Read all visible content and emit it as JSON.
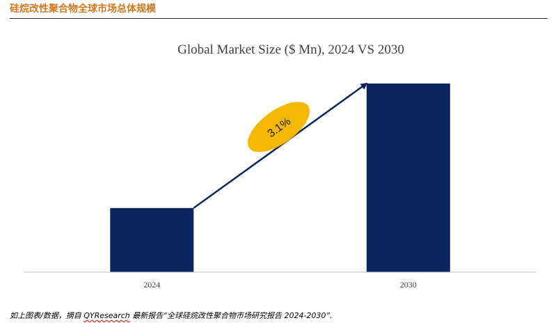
{
  "header": {
    "title": "硅烷改性聚合物全球市场总体规模"
  },
  "colors": {
    "title_accent": "#d4781e",
    "bar": "#0c2560",
    "arrow": "#0c2560",
    "cagr_bubble": "#f5b800",
    "axis": "#bfbfbf"
  },
  "chart_data": {
    "type": "bar",
    "title": "Global Market Size ($ Mn), 2024 VS 2030",
    "xlabel": "",
    "ylabel": "",
    "categories": [
      "2024",
      "2030"
    ],
    "values": [
      34,
      100
    ],
    "ylim": [
      0,
      100
    ],
    "value_axis_shown": false,
    "grid": false,
    "annotation": {
      "type": "growth-arrow",
      "label": "3.1%",
      "from": "2024",
      "to": "2030"
    }
  },
  "footer": {
    "prefix": "如上图表/数据，摘自 ",
    "brand": "QYResearch",
    "suffix": " 最新报告“全球硅烷改性聚合物市场研究报告 2024-2030”."
  }
}
